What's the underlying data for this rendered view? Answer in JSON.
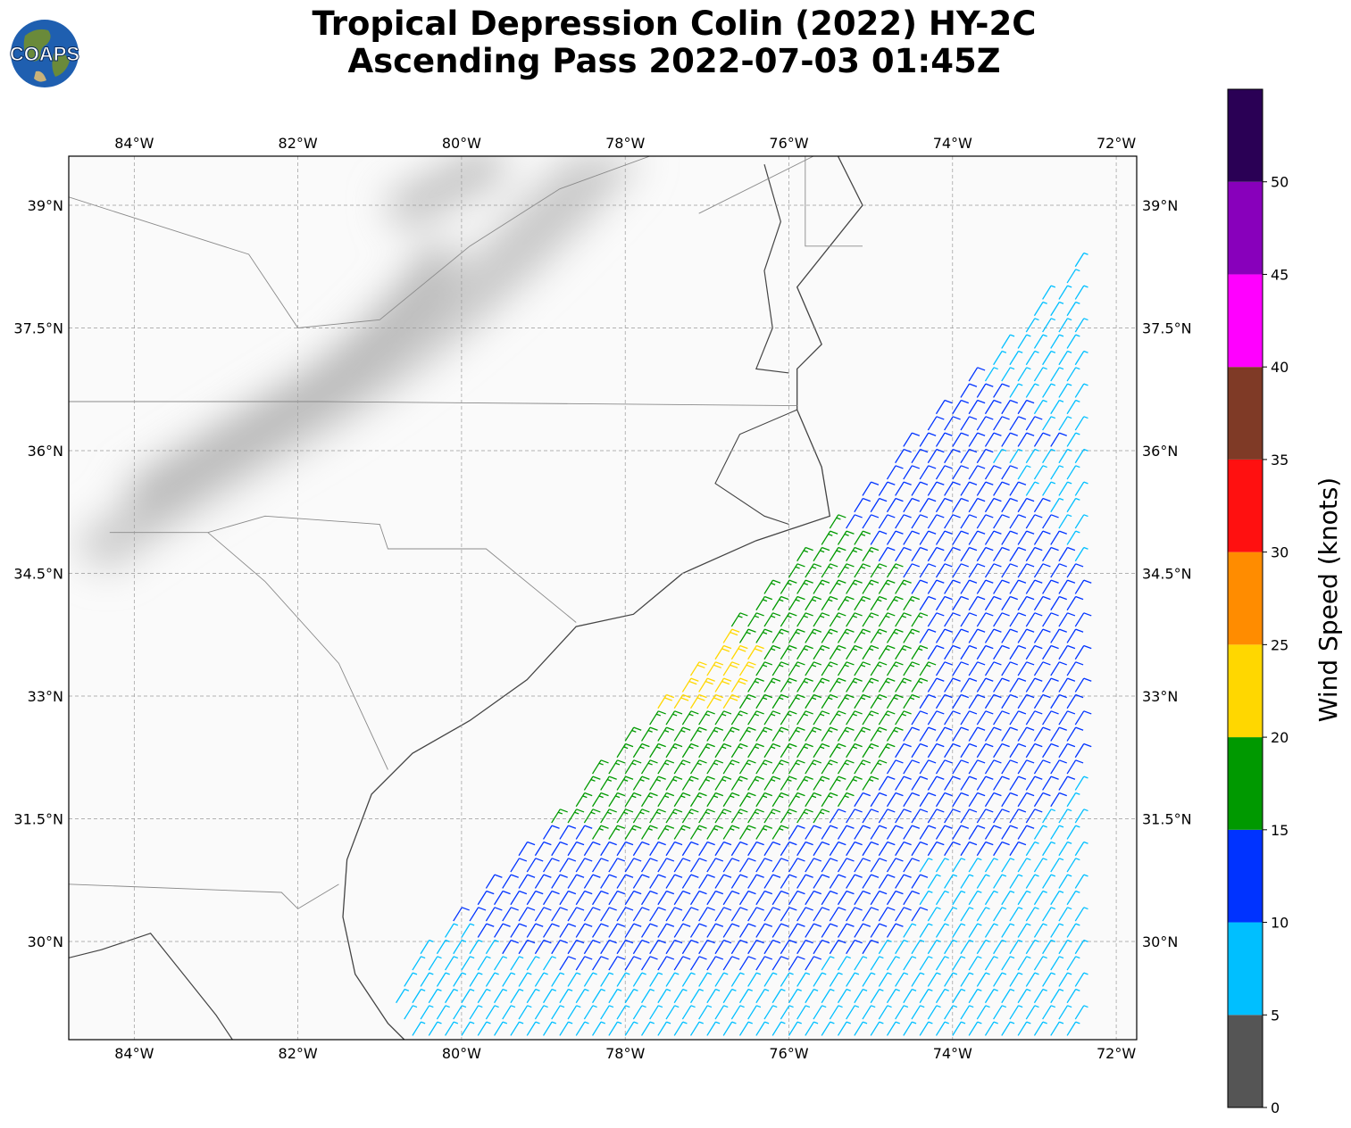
{
  "title": {
    "line1": "Tropical Depression Colin (2022) HY-2C",
    "line2": "Ascending Pass 2022-07-03 01:45Z"
  },
  "logo": {
    "text": "COAPS",
    "icon": "globe-icon",
    "ocean_color": "#1f5fb0",
    "land_color": "#6a8a3a"
  },
  "map": {
    "extent": {
      "lon_min": -84.8,
      "lon_max": -71.75,
      "lat_min": 28.8,
      "lat_max": 39.6
    },
    "lon_ticks": [
      "84°W",
      "82°W",
      "80°W",
      "78°W",
      "76°W",
      "74°W",
      "72°W"
    ],
    "lon_tick_values": [
      -84,
      -82,
      -80,
      -78,
      -76,
      -74,
      -72
    ],
    "lat_ticks": [
      "30°N",
      "31.5°N",
      "33°N",
      "34.5°N",
      "36°N",
      "37.5°N",
      "39°N"
    ],
    "lat_tick_values": [
      30,
      31.5,
      33,
      34.5,
      36,
      37.5,
      39
    ],
    "gridlines": true,
    "background": "grayscale satellite imagery",
    "wind_barbs": "colored by wind speed"
  },
  "colorbar": {
    "label": "Wind Speed (knots)",
    "ticks": [
      "0",
      "5",
      "10",
      "15",
      "20",
      "25",
      "30",
      "35",
      "40",
      "45",
      "50"
    ],
    "bins": [
      {
        "min": 0,
        "max": 5,
        "color": "#555555"
      },
      {
        "min": 5,
        "max": 10,
        "color": "#00bfff"
      },
      {
        "min": 10,
        "max": 15,
        "color": "#0033ff"
      },
      {
        "min": 15,
        "max": 20,
        "color": "#009900"
      },
      {
        "min": 20,
        "max": 25,
        "color": "#ffd700"
      },
      {
        "min": 25,
        "max": 30,
        "color": "#ff8c00"
      },
      {
        "min": 30,
        "max": 35,
        "color": "#ff1010"
      },
      {
        "min": 35,
        "max": 40,
        "color": "#7f3a26"
      },
      {
        "min": 40,
        "max": 45,
        "color": "#ff00ff"
      },
      {
        "min": 45,
        "max": 50,
        "color": "#8800bb"
      },
      {
        "min": 50,
        "max": 55,
        "color": "#2a0055"
      }
    ]
  }
}
